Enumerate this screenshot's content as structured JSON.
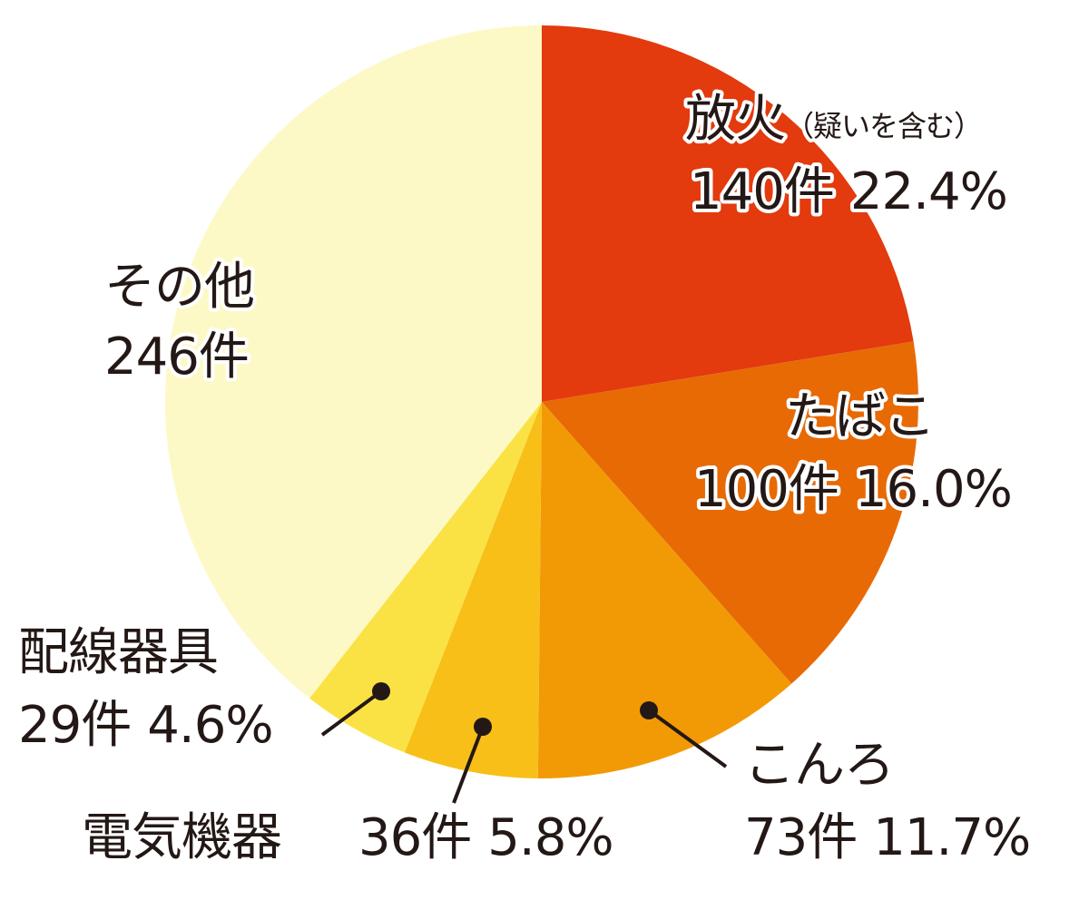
{
  "chart_data": {
    "type": "pie",
    "categories": [
      "放火",
      "たばこ",
      "こんろ",
      "電気機器",
      "配線器具",
      "その他"
    ],
    "annotations": [
      "（疑いを含む）"
    ],
    "values": [
      140,
      100,
      73,
      36,
      29,
      246
    ],
    "value_labels": [
      "140件",
      "100件",
      "73件",
      "36件",
      "29件",
      "246件"
    ],
    "percent_labels": [
      "22.4%",
      "16.0%",
      "11.7%",
      "5.8%",
      "4.6%"
    ],
    "colors": [
      "#e33a0e",
      "#e86a05",
      "#f29a06",
      "#f7bf18",
      "#fbe244",
      "#fdf9c6"
    ]
  }
}
